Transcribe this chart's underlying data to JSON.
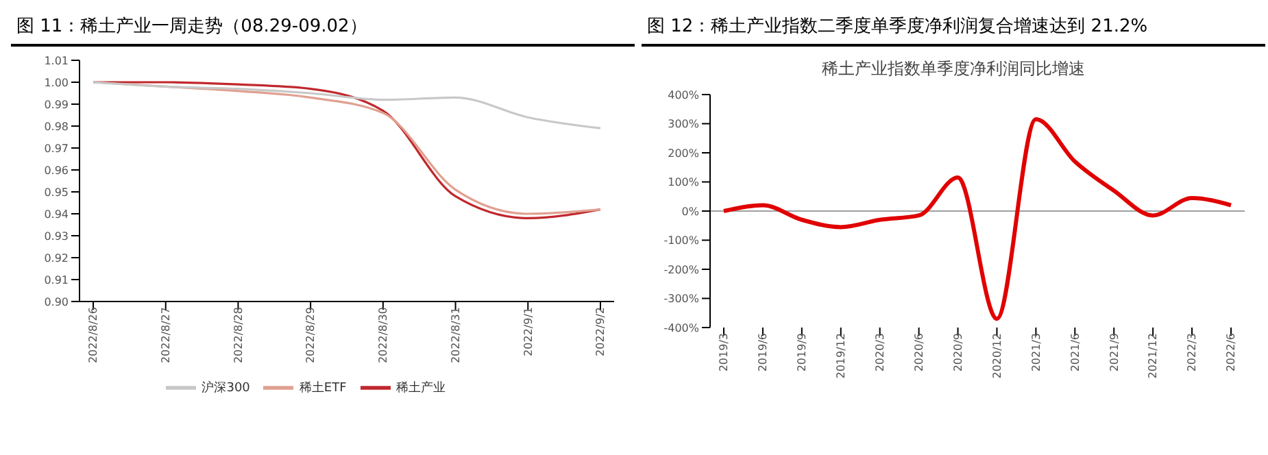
{
  "chart_data": [
    {
      "type": "line",
      "title": "图 11：稀土产业一周走势（08.29-09.02）",
      "categories": [
        "2022/8/26",
        "2022/8/27",
        "2022/8/28",
        "2022/8/29",
        "2022/8/30",
        "2022/8/31",
        "2022/9/1",
        "2022/9/2"
      ],
      "series": [
        {
          "name": "稀土产业",
          "color": "#c0282d",
          "values": [
            1.0,
            1.0,
            0.999,
            0.997,
            0.987,
            0.948,
            0.938,
            0.942
          ]
        },
        {
          "name": "稀土ETF",
          "color": "#e0a090",
          "values": [
            1.0,
            0.998,
            0.996,
            0.993,
            0.986,
            0.951,
            0.94,
            0.942
          ]
        },
        {
          "name": "沪深300",
          "color": "#c8c8c8",
          "values": [
            1.0,
            0.998,
            0.997,
            0.995,
            0.992,
            0.993,
            0.984,
            0.979
          ]
        }
      ],
      "ylim": [
        0.9,
        1.01
      ],
      "yticks": [
        {
          "value": 0.9,
          "label": "0.90"
        },
        0.91,
        0.92,
        0.93,
        0.94,
        0.95,
        0.96,
        0.97,
        0.98,
        0.99,
        {
          "value": 1.0,
          "label": "1.00"
        },
        1.01
      ],
      "grid": false,
      "legend": "bottom",
      "marker": "none",
      "line_style": "solid"
    },
    {
      "type": "line",
      "title": "图 12：稀土产业指数二季度单季度净利润复合增速达到 21.2%",
      "subtitle": "稀土产业指数单季度净利润同比增速",
      "categories": [
        "2019/3",
        "2019/6",
        "2019/9",
        "2019/12",
        "2020/3",
        "2020/6",
        "2020/9",
        "2020/12",
        "2021/3",
        "2021/6",
        "2021/9",
        "2021/12",
        "2022/3",
        "2022/6"
      ],
      "series": [
        {
          "color": "#e00000",
          "values": [
            0,
            20,
            -30,
            -55,
            -30,
            -15,
            115,
            -370,
            315,
            170,
            70,
            -15,
            45,
            20
          ]
        }
      ],
      "ylim": [
        -400,
        400
      ],
      "yticks": [
        {
          "value": -400,
          "label": "-400%"
        },
        {
          "value": -300,
          "label": "-300%"
        },
        {
          "value": -200,
          "label": "-200%"
        },
        {
          "value": -100,
          "label": "-100%"
        },
        {
          "value": 0,
          "label": "0%"
        },
        {
          "value": 100,
          "label": "100%"
        },
        {
          "value": 200,
          "label": "200%"
        },
        {
          "value": 300,
          "label": "300%"
        },
        {
          "value": 400,
          "label": "400%"
        }
      ],
      "ref_lines": [
        {
          "axis": "y",
          "value": 0,
          "color": "#a0a0a0"
        }
      ],
      "grid": false,
      "legend": false,
      "marker": "none",
      "line_style": "solid"
    }
  ]
}
